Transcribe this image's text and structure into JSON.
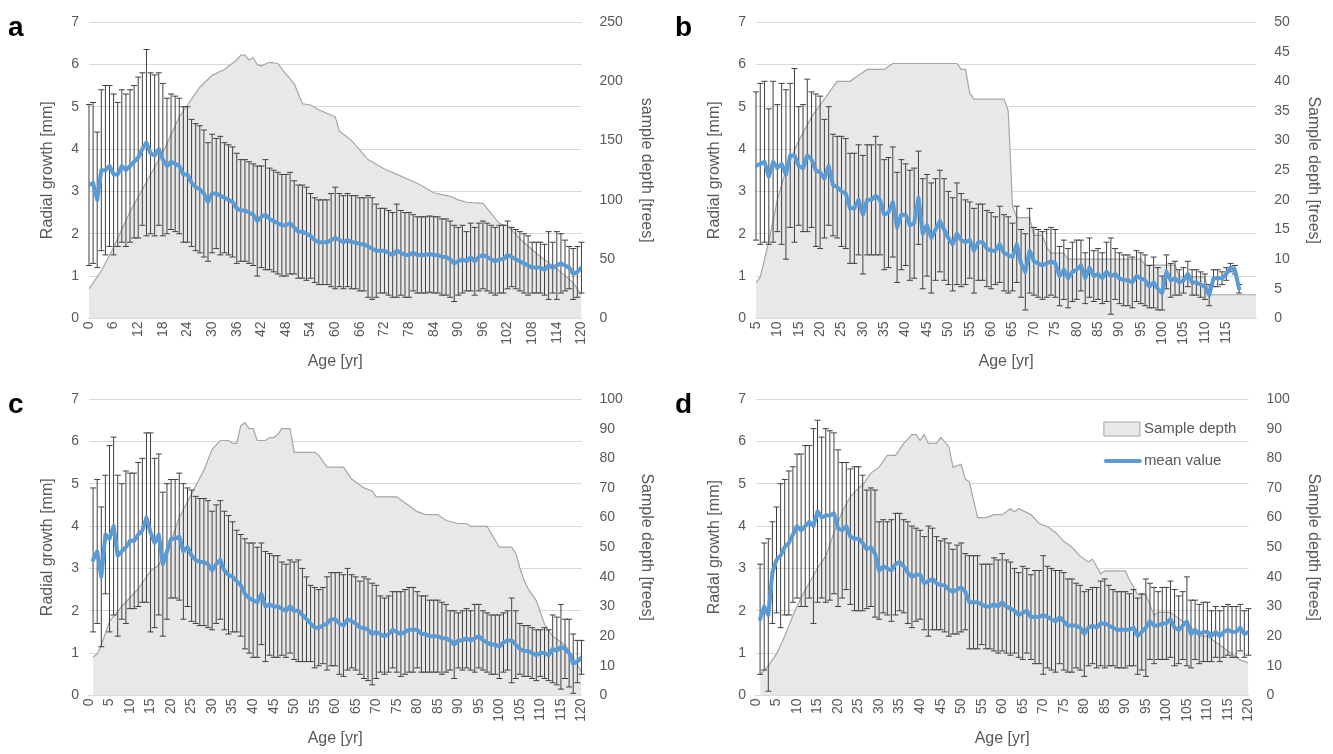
{
  "chart_data": [
    {
      "type": "line",
      "title": "a",
      "xlabel": "Age [yr]",
      "ylabel": "Radial growth [mm]",
      "y2label": "sample depth [trees]",
      "xlim": [
        0,
        120
      ],
      "xticks": [
        0,
        6,
        12,
        18,
        24,
        30,
        36,
        42,
        48,
        54,
        60,
        66,
        72,
        78,
        84,
        90,
        96,
        102,
        108,
        114,
        120
      ],
      "ylim": [
        0,
        7
      ],
      "yticks": [
        0,
        1,
        2,
        3,
        4,
        5,
        6,
        7
      ],
      "y2lim": [
        0,
        250
      ],
      "y2ticks": [
        0,
        50,
        100,
        150,
        200,
        250
      ],
      "grid": "y",
      "marker": "none",
      "x": [
        0,
        1,
        2,
        3,
        4,
        5,
        6,
        7,
        8,
        9,
        10,
        11,
        12,
        13,
        14,
        15,
        16,
        17,
        18,
        19,
        20,
        21,
        22,
        23,
        24,
        25,
        26,
        27,
        28,
        29,
        30,
        31,
        32,
        33,
        34,
        35,
        36,
        37,
        38,
        39,
        40,
        41,
        42,
        43,
        44,
        45,
        46,
        47,
        48,
        49,
        50,
        51,
        52,
        53,
        54,
        55,
        56,
        57,
        58,
        59,
        60,
        61,
        62,
        63,
        64,
        65,
        66,
        67,
        68,
        69,
        70,
        71,
        72,
        73,
        74,
        75,
        76,
        77,
        78,
        79,
        80,
        81,
        82,
        83,
        84,
        85,
        86,
        87,
        88,
        89,
        90,
        91,
        92,
        93,
        94,
        95,
        96,
        97,
        98,
        99,
        100,
        101,
        102,
        103,
        104,
        105,
        106,
        107,
        108,
        109,
        110,
        111,
        112,
        113,
        114,
        115,
        116,
        117,
        118,
        119,
        120
      ],
      "series": [
        {
          "type": "area",
          "axis": "y2",
          "color": "#e8e8e8",
          "x": [
            0,
            3,
            6,
            10,
            14,
            18,
            22,
            24,
            27,
            30,
            33,
            36,
            37,
            38,
            39,
            40,
            41,
            42,
            44,
            46,
            48,
            50,
            52,
            54,
            56,
            60,
            61,
            64,
            68,
            72,
            76,
            80,
            84,
            88,
            90,
            92,
            96,
            100,
            102,
            106,
            110,
            114,
            118,
            120
          ],
          "values": [
            25,
            40,
            60,
            90,
            115,
            140,
            170,
            180,
            195,
            205,
            210,
            218,
            222,
            222,
            218,
            220,
            214,
            213,
            216,
            215,
            206,
            198,
            181,
            180,
            176,
            170,
            158,
            150,
            134,
            126,
            120,
            114,
            106,
            103,
            100,
            98,
            97,
            80,
            78,
            64,
            52,
            42,
            30,
            20
          ]
        },
        {
          "type": "line",
          "color": "#5b9bd5",
          "values": [
            3.15,
            3.2,
            2.8,
            3.5,
            3.5,
            3.6,
            3.4,
            3.4,
            3.6,
            3.5,
            3.6,
            3.7,
            3.8,
            4.0,
            4.15,
            3.9,
            3.85,
            4.0,
            3.75,
            3.6,
            3.7,
            3.65,
            3.6,
            3.4,
            3.4,
            3.2,
            3.1,
            3.05,
            2.95,
            2.75,
            2.95,
            2.95,
            2.9,
            2.85,
            2.8,
            2.75,
            2.6,
            2.55,
            2.55,
            2.5,
            2.45,
            2.3,
            2.4,
            2.45,
            2.35,
            2.3,
            2.25,
            2.2,
            2.2,
            2.25,
            2.15,
            2.05,
            2.05,
            2.0,
            1.95,
            1.85,
            1.8,
            1.8,
            1.8,
            1.85,
            1.9,
            1.85,
            1.8,
            1.85,
            1.8,
            1.8,
            1.75,
            1.75,
            1.7,
            1.65,
            1.6,
            1.6,
            1.6,
            1.55,
            1.5,
            1.6,
            1.55,
            1.5,
            1.5,
            1.55,
            1.5,
            1.5,
            1.5,
            1.52,
            1.5,
            1.5,
            1.45,
            1.45,
            1.4,
            1.3,
            1.35,
            1.4,
            1.35,
            1.45,
            1.35,
            1.45,
            1.5,
            1.45,
            1.4,
            1.35,
            1.4,
            1.4,
            1.5,
            1.45,
            1.4,
            1.35,
            1.3,
            1.25,
            1.2,
            1.2,
            1.2,
            1.15,
            1.25,
            1.2,
            1.25,
            1.3,
            1.25,
            1.2,
            1.05,
            1.1,
            1.2
          ],
          "errors": [
            1.9,
            1.9,
            1.6,
            1.9,
            2.0,
            1.9,
            1.9,
            1.7,
            1.8,
            1.8,
            1.8,
            1.8,
            1.9,
            1.8,
            2.2,
            1.9,
            1.9,
            1.8,
            1.8,
            1.6,
            1.6,
            1.6,
            1.6,
            1.6,
            1.6,
            1.5,
            1.5,
            1.5,
            1.5,
            1.4,
            1.4,
            1.3,
            1.4,
            1.3,
            1.3,
            1.3,
            1.3,
            1.2,
            1.2,
            1.2,
            1.2,
            1.3,
            1.2,
            1.3,
            1.2,
            1.2,
            1.2,
            1.2,
            1.2,
            1.2,
            1.1,
            1.1,
            1.1,
            1.1,
            1.0,
            1.0,
            1.0,
            1.0,
            1.0,
            1.1,
            1.2,
            1.1,
            1.1,
            1.1,
            1.1,
            1.1,
            1.1,
            1.1,
            1.2,
            1.2,
            1.1,
            1.0,
            1.0,
            1.0,
            1.0,
            1.1,
            1.0,
            1.0,
            1.0,
            0.9,
            0.9,
            0.9,
            0.9,
            0.9,
            0.9,
            0.9,
            0.9,
            0.9,
            0.9,
            0.9,
            0.8,
            0.8,
            0.7,
            0.8,
            0.8,
            0.8,
            0.8,
            0.8,
            0.8,
            0.8,
            0.8,
            0.8,
            0.8,
            0.7,
            0.7,
            0.7,
            0.7,
            0.7,
            0.6,
            0.6,
            0.6,
            0.6,
            0.8,
            0.6,
            0.8,
            0.7,
            0.6,
            0.5,
            0.6,
            0.6,
            0.6
          ]
        }
      ]
    },
    {
      "type": "line",
      "title": "b",
      "xlabel": "Age [yr]",
      "ylabel": "Radial growth [mm]",
      "y2label": "Sample depth [trees]",
      "xlim": [
        5,
        122
      ],
      "xticks": [
        5,
        10,
        15,
        20,
        25,
        30,
        35,
        40,
        45,
        50,
        55,
        60,
        65,
        70,
        75,
        80,
        85,
        90,
        95,
        100,
        105,
        110,
        115
      ],
      "ylim": [
        0,
        7
      ],
      "yticks": [
        0,
        1,
        2,
        3,
        4,
        5,
        6,
        7
      ],
      "y2lim": [
        0,
        50
      ],
      "y2ticks": [
        0,
        5,
        10,
        15,
        20,
        25,
        30,
        35,
        40,
        45,
        50
      ],
      "grid": "y",
      "marker": "none",
      "x": [
        5,
        6,
        7,
        8,
        9,
        10,
        11,
        12,
        13,
        14,
        15,
        16,
        17,
        18,
        19,
        20,
        21,
        22,
        23,
        24,
        25,
        26,
        27,
        28,
        29,
        30,
        31,
        32,
        33,
        34,
        35,
        36,
        37,
        38,
        39,
        40,
        41,
        42,
        43,
        44,
        45,
        46,
        47,
        48,
        49,
        50,
        51,
        52,
        53,
        54,
        55,
        56,
        57,
        58,
        59,
        60,
        61,
        62,
        63,
        64,
        65,
        66,
        67,
        68,
        69,
        70,
        71,
        72,
        73,
        74,
        75,
        76,
        77,
        78,
        79,
        80,
        81,
        82,
        83,
        84,
        85,
        86,
        87,
        88,
        89,
        90,
        91,
        92,
        93,
        94,
        95,
        96,
        97,
        98,
        99,
        100,
        101,
        102,
        103,
        104,
        105,
        106,
        107,
        108,
        109,
        110,
        111,
        112,
        113,
        114,
        115,
        116,
        117,
        118
      ],
      "series": [
        {
          "type": "area",
          "axis": "y2",
          "color": "#e8e8e8",
          "x": [
            5,
            6,
            8,
            10,
            12,
            15,
            18,
            20,
            21,
            22,
            23,
            24,
            27,
            29,
            31,
            35,
            37,
            52,
            53,
            54,
            55,
            56,
            63,
            64,
            65,
            66,
            69,
            70,
            72,
            73,
            74,
            77,
            78,
            95,
            96,
            103,
            104,
            110,
            111,
            122
          ],
          "values": [
            6,
            7,
            13,
            20,
            25,
            30,
            34,
            36,
            37,
            38,
            39,
            40,
            40,
            41,
            42,
            42,
            43,
            43,
            42,
            42,
            38,
            37,
            37,
            35,
            19,
            17,
            17,
            14,
            14,
            12,
            11,
            11,
            10,
            10,
            9,
            9,
            7,
            7,
            4,
            4
          ]
        },
        {
          "type": "line",
          "color": "#5b9bd5",
          "values": [
            3.6,
            3.65,
            3.7,
            3.35,
            3.7,
            3.55,
            3.65,
            3.4,
            3.85,
            3.85,
            3.6,
            3.55,
            3.85,
            3.75,
            3.5,
            3.45,
            3.3,
            3.6,
            3.15,
            3.1,
            3.0,
            2.95,
            2.6,
            2.6,
            2.8,
            2.45,
            2.8,
            2.8,
            2.9,
            2.8,
            2.45,
            2.5,
            2.75,
            2.15,
            2.45,
            2.45,
            2.2,
            2.25,
            2.85,
            2.0,
            2.2,
            1.9,
            2.1,
            2.3,
            2.1,
            1.9,
            1.75,
            2.0,
            1.85,
            1.8,
            1.85,
            1.6,
            1.8,
            1.8,
            1.65,
            1.6,
            1.6,
            1.75,
            1.55,
            1.5,
            1.45,
            1.75,
            1.3,
            1.1,
            1.6,
            1.35,
            1.3,
            1.25,
            1.3,
            1.35,
            1.3,
            1.0,
            1.15,
            0.95,
            1.1,
            1.15,
            1.25,
            0.95,
            1.2,
            1.0,
            1.05,
            0.95,
            1.1,
            1.0,
            1.05,
            0.95,
            0.9,
            0.9,
            0.85,
            1.0,
            0.95,
            0.9,
            0.75,
            0.85,
            0.7,
            0.6,
            1.1,
            0.9,
            0.95,
            0.85,
            0.9,
            1.05,
            0.85,
            0.85,
            0.8,
            0.75,
            0.55,
            0.95,
            0.95,
            0.95,
            1.05,
            1.2,
            1.15,
            0.7
          ],
          "errors": [
            1.75,
            1.9,
            1.9,
            1.6,
            1.9,
            1.5,
            1.9,
            2.0,
            1.7,
            2.05,
            1.4,
            1.5,
            1.8,
            1.6,
            1.8,
            1.8,
            1.4,
            1.4,
            1.2,
            1.2,
            1.3,
            1.3,
            1.3,
            1.3,
            1.3,
            1.4,
            1.3,
            1.3,
            1.4,
            1.3,
            1.3,
            1.3,
            1.3,
            1.3,
            1.3,
            1.2,
            1.3,
            1.3,
            1.1,
            1.3,
            1.2,
            1.3,
            1.2,
            1.2,
            1.2,
            1.1,
            1.1,
            1.2,
            1.1,
            1.0,
            0.9,
            1.0,
            0.9,
            0.9,
            0.9,
            0.9,
            0.8,
            0.9,
            0.9,
            0.9,
            0.8,
            0.9,
            0.8,
            0.9,
            1.0,
            0.8,
            0.8,
            0.8,
            0.8,
            0.8,
            0.8,
            0.7,
            0.7,
            0.7,
            0.7,
            0.7,
            0.6,
            0.6,
            0.7,
            0.6,
            0.6,
            0.6,
            0.7,
            0.9,
            0.6,
            0.6,
            0.6,
            0.6,
            0.6,
            0.6,
            0.6,
            0.6,
            0.5,
            0.6,
            0.5,
            0.4,
            0.4,
            0.4,
            0.4,
            0.3,
            0.3,
            0.3,
            0.3,
            0.3,
            0.3,
            0.3,
            0.25,
            0.2,
            0.2,
            0.15,
            0.15,
            0.1,
            0.1,
            0.1
          ]
        }
      ]
    },
    {
      "type": "line",
      "title": "c",
      "xlabel": "Age [yr]",
      "ylabel": "Radial growth [mm]",
      "y2label": "Sample depth [trees]",
      "xlim": [
        0,
        120
      ],
      "xticks": [
        0,
        5,
        10,
        15,
        20,
        25,
        30,
        35,
        40,
        45,
        50,
        55,
        60,
        65,
        70,
        75,
        80,
        85,
        90,
        95,
        100,
        105,
        110,
        115,
        120
      ],
      "ylim": [
        0,
        7
      ],
      "yticks": [
        0,
        1,
        2,
        3,
        4,
        5,
        6,
        7
      ],
      "y2lim": [
        0,
        100
      ],
      "y2ticks": [
        0,
        10,
        20,
        30,
        40,
        50,
        60,
        70,
        80,
        90,
        100
      ],
      "grid": "y",
      "marker": "none",
      "x": [
        1,
        2,
        3,
        4,
        5,
        6,
        7,
        8,
        9,
        10,
        11,
        12,
        13,
        14,
        15,
        16,
        17,
        18,
        19,
        20,
        21,
        22,
        23,
        24,
        25,
        26,
        27,
        28,
        29,
        30,
        31,
        32,
        33,
        34,
        35,
        36,
        37,
        38,
        39,
        40,
        41,
        42,
        43,
        44,
        45,
        46,
        47,
        48,
        49,
        50,
        51,
        52,
        53,
        54,
        55,
        56,
        57,
        58,
        59,
        60,
        61,
        62,
        63,
        64,
        65,
        66,
        67,
        68,
        69,
        70,
        71,
        72,
        73,
        74,
        75,
        76,
        77,
        78,
        79,
        80,
        81,
        82,
        83,
        84,
        85,
        86,
        87,
        88,
        89,
        90,
        91,
        92,
        93,
        94,
        95,
        96,
        97,
        98,
        99,
        100,
        101,
        102,
        103,
        104,
        105,
        106,
        107,
        108,
        109,
        110,
        111,
        112,
        113,
        114,
        115,
        116,
        117,
        118,
        119,
        120
      ],
      "series": [
        {
          "type": "area",
          "axis": "y2",
          "color": "#e8e8e8",
          "x": [
            1,
            2,
            3,
            5,
            8,
            12,
            15,
            17,
            20,
            22,
            25,
            28,
            30,
            32,
            34,
            35,
            36,
            37,
            38,
            39,
            40,
            41,
            43,
            44,
            45,
            46,
            47,
            49,
            50,
            55,
            56,
            58,
            62,
            64,
            67,
            69,
            70,
            75,
            78,
            80,
            82,
            85,
            87,
            90,
            92,
            93,
            97,
            100,
            103,
            104,
            105,
            106,
            107,
            109,
            110,
            111,
            113,
            116,
            118,
            120
          ],
          "values": [
            13,
            14,
            17,
            25,
            30,
            36,
            42,
            44,
            52,
            60,
            68,
            76,
            83,
            86,
            86,
            85,
            85,
            91,
            92,
            90,
            90,
            86,
            86,
            87,
            87,
            88,
            90,
            90,
            82,
            82,
            81,
            77,
            77,
            73,
            70,
            69,
            67,
            67,
            64,
            62,
            61,
            61,
            59,
            58,
            58,
            57,
            57,
            50,
            50,
            48,
            43,
            39,
            36,
            32,
            28,
            24,
            20,
            17,
            13,
            8
          ]
        },
        {
          "type": "line",
          "color": "#5b9bd5",
          "values": [
            3.2,
            3.4,
            2.8,
            3.8,
            3.7,
            4.0,
            3.3,
            3.4,
            3.5,
            3.65,
            3.65,
            3.8,
            3.9,
            4.2,
            3.85,
            3.6,
            3.8,
            3.1,
            3.4,
            3.7,
            3.7,
            3.75,
            3.4,
            3.5,
            3.3,
            3.2,
            3.15,
            3.15,
            3.1,
            2.95,
            3.1,
            3.2,
            2.95,
            2.85,
            2.8,
            2.7,
            2.6,
            2.4,
            2.3,
            2.25,
            2.2,
            2.4,
            2.1,
            2.15,
            2.1,
            2.1,
            2.05,
            2.0,
            2.1,
            2.0,
            2.0,
            1.9,
            1.8,
            1.7,
            1.6,
            1.6,
            1.65,
            1.7,
            1.8,
            1.8,
            1.7,
            1.65,
            1.8,
            1.75,
            1.7,
            1.6,
            1.6,
            1.55,
            1.45,
            1.5,
            1.45,
            1.4,
            1.45,
            1.55,
            1.5,
            1.45,
            1.5,
            1.55,
            1.55,
            1.55,
            1.45,
            1.45,
            1.4,
            1.4,
            1.4,
            1.35,
            1.35,
            1.3,
            1.2,
            1.3,
            1.3,
            1.35,
            1.3,
            1.35,
            1.4,
            1.3,
            1.25,
            1.2,
            1.2,
            1.15,
            1.25,
            1.3,
            1.3,
            1.2,
            1.1,
            1.05,
            1.05,
            1.0,
            0.95,
            1.0,
            1.0,
            0.95,
            1.1,
            1.05,
            1.15,
            1.1,
            1.0,
            0.75,
            0.8,
            0.9
          ],
          "errors": [
            1.7,
            1.7,
            1.65,
            1.4,
            2.2,
            2.1,
            1.9,
            1.6,
            1.8,
            1.6,
            1.6,
            1.7,
            1.7,
            2.0,
            2.35,
            2.0,
            1.9,
            1.7,
            1.6,
            1.4,
            1.4,
            1.5,
            1.6,
            1.4,
            1.55,
            1.5,
            1.5,
            1.5,
            1.5,
            1.4,
            1.4,
            1.4,
            1.4,
            1.4,
            1.3,
            1.2,
            1.2,
            1.3,
            1.3,
            1.35,
            1.3,
            1.2,
            1.3,
            1.2,
            1.2,
            1.2,
            1.1,
            1.1,
            1.1,
            1.15,
            1.2,
            1.1,
            1.0,
            0.9,
            0.95,
            0.9,
            0.9,
            1.1,
            1.1,
            1.1,
            1.2,
            1.2,
            1.2,
            1.1,
            1.1,
            1.1,
            1.2,
            1.2,
            1.2,
            1.1,
            0.9,
            0.9,
            0.9,
            0.9,
            0.95,
            1.0,
            1.0,
            1.0,
            1.0,
            0.9,
            0.9,
            0.9,
            0.85,
            0.85,
            0.85,
            0.85,
            0.8,
            0.7,
            0.8,
            0.65,
            0.7,
            0.7,
            0.7,
            0.8,
            0.75,
            0.7,
            0.7,
            0.7,
            0.7,
            0.75,
            0.7,
            0.7,
            1.0,
            0.8,
            0.6,
            0.6,
            0.6,
            0.6,
            0.6,
            0.55,
            0.6,
            0.6,
            0.8,
            0.8,
            1.0,
            0.7,
            0.8,
            0.7,
            0.5,
            0.4
          ]
        }
      ]
    },
    {
      "type": "line",
      "title": "d",
      "xlabel": "Age [yr]",
      "ylabel": "Radal growth [mm]",
      "y2label": "Sample depth [trees]",
      "xlim": [
        0,
        120
      ],
      "xticks": [
        0,
        5,
        10,
        15,
        20,
        25,
        30,
        35,
        40,
        45,
        50,
        55,
        60,
        65,
        70,
        75,
        80,
        85,
        90,
        95,
        100,
        105,
        110,
        115,
        120
      ],
      "ylim": [
        0,
        7
      ],
      "yticks": [
        0,
        1,
        2,
        3,
        4,
        5,
        6,
        7
      ],
      "y2lim": [
        0,
        100
      ],
      "y2ticks": [
        0,
        10,
        20,
        30,
        40,
        50,
        60,
        70,
        80,
        90,
        100
      ],
      "grid": "y",
      "marker": "none",
      "legend": "top right",
      "x": [
        1,
        2,
        3,
        4,
        5,
        6,
        7,
        8,
        9,
        10,
        11,
        12,
        13,
        14,
        15,
        16,
        17,
        18,
        19,
        20,
        21,
        22,
        23,
        24,
        25,
        26,
        27,
        28,
        29,
        30,
        31,
        32,
        33,
        34,
        35,
        36,
        37,
        38,
        39,
        40,
        41,
        42,
        43,
        44,
        45,
        46,
        47,
        48,
        49,
        50,
        51,
        52,
        53,
        54,
        55,
        56,
        57,
        58,
        59,
        60,
        61,
        62,
        63,
        64,
        65,
        66,
        67,
        68,
        69,
        70,
        71,
        72,
        73,
        74,
        75,
        76,
        77,
        78,
        79,
        80,
        81,
        82,
        83,
        84,
        85,
        86,
        87,
        88,
        89,
        90,
        91,
        92,
        93,
        94,
        95,
        96,
        97,
        98,
        99,
        100,
        101,
        102,
        103,
        104,
        105,
        106,
        107,
        108,
        109,
        110,
        111,
        112,
        113,
        114,
        115,
        116,
        117,
        118,
        119,
        120
      ],
      "series": [
        {
          "type": "area",
          "name": "Sample depth",
          "axis": "y2",
          "color": "#e8e8e8",
          "x": [
            1,
            3,
            5,
            7,
            9,
            11,
            13,
            15,
            17,
            19,
            21,
            23,
            25,
            26,
            28,
            30,
            32,
            34,
            36,
            38,
            39,
            40,
            41,
            42,
            44,
            45,
            47,
            48,
            50,
            51,
            52,
            54,
            56,
            58,
            60,
            62,
            63,
            64,
            67,
            69,
            71,
            73,
            75,
            77,
            79,
            81,
            82,
            84,
            85,
            86,
            90,
            91,
            93,
            95,
            97,
            98,
            101,
            103,
            106,
            108,
            110,
            112,
            114,
            116,
            118,
            120
          ],
          "values": [
            7,
            10,
            14,
            20,
            27,
            33,
            38,
            43,
            47,
            55,
            62,
            67,
            70,
            71,
            75,
            77,
            81,
            81,
            85,
            88,
            88,
            86,
            88,
            85,
            85,
            87,
            84,
            77,
            78,
            73,
            72,
            60,
            60,
            61,
            61,
            63,
            62,
            63,
            61,
            58,
            57,
            55,
            52,
            50,
            47,
            45,
            46,
            41,
            42,
            42,
            42,
            39,
            34,
            34,
            27,
            28,
            28,
            26,
            23,
            20,
            20,
            18,
            16,
            14,
            12,
            11
          ]
        },
        {
          "type": "line",
          "name": "mean value",
          "color": "#5b9bd5",
          "values": [
            1.8,
            2.1,
            1.9,
            2.9,
            3.2,
            3.3,
            3.5,
            3.6,
            3.8,
            4.0,
            3.9,
            4.0,
            4.1,
            4.0,
            4.35,
            4.2,
            4.25,
            4.25,
            4.3,
            3.95,
            3.9,
            4.0,
            3.75,
            3.7,
            3.7,
            3.6,
            3.45,
            3.5,
            3.35,
            2.95,
            3.05,
            3.0,
            2.95,
            3.1,
            3.15,
            3.05,
            2.9,
            2.8,
            2.85,
            2.85,
            2.65,
            2.7,
            2.75,
            2.65,
            2.6,
            2.6,
            2.5,
            2.45,
            2.5,
            2.55,
            2.45,
            2.2,
            2.2,
            2.2,
            2.15,
            2.1,
            2.1,
            2.15,
            2.1,
            2.2,
            2.1,
            2.05,
            2.0,
            1.9,
            1.95,
            2.0,
            1.85,
            1.85,
            1.85,
            1.9,
            1.85,
            1.8,
            1.75,
            1.85,
            1.75,
            1.65,
            1.65,
            1.65,
            1.6,
            1.45,
            1.6,
            1.65,
            1.6,
            1.7,
            1.7,
            1.65,
            1.6,
            1.55,
            1.55,
            1.55,
            1.55,
            1.6,
            1.4,
            1.5,
            1.6,
            1.75,
            1.65,
            1.65,
            1.7,
            1.7,
            1.8,
            1.6,
            1.55,
            1.65,
            1.75,
            1.45,
            1.55,
            1.45,
            1.5,
            1.5,
            1.4,
            1.5,
            1.4,
            1.5,
            1.55,
            1.5,
            1.5,
            1.6,
            1.45,
            1.5
          ],
          "errors": [
            1.3,
            1.5,
            1.8,
            1.2,
            1.25,
            1.7,
            1.6,
            1.7,
            1.6,
            1.7,
            1.8,
            1.9,
            1.8,
            2.3,
            2.15,
            1.9,
            2.05,
            2.0,
            1.9,
            1.85,
            1.6,
            1.5,
            1.6,
            1.7,
            1.7,
            1.6,
            1.4,
            1.4,
            1.5,
            1.15,
            1.1,
            1.1,
            1.2,
            1.2,
            1.15,
            1.1,
            1.2,
            1.2,
            1.1,
            1.05,
            1.1,
            1.3,
            1.2,
            1.1,
            1.05,
            1.1,
            1.1,
            1.0,
            1.05,
            1.05,
            0.9,
            1.1,
            1.1,
            1.1,
            0.95,
            1.0,
            1.0,
            1.1,
            1.1,
            1.15,
            1.1,
            1.1,
            1.0,
            1.0,
            1.1,
            1.0,
            1.0,
            1.1,
            1.1,
            1.4,
            1.2,
            1.2,
            1.2,
            1.1,
            1.15,
            1.1,
            1.1,
            1.0,
            1.0,
            1.0,
            0.9,
            0.9,
            0.95,
            1.0,
            1.05,
            0.95,
            0.9,
            0.9,
            0.9,
            0.9,
            0.85,
            0.9,
            0.9,
            0.9,
            1.15,
            0.9,
            0.9,
            0.8,
            0.85,
            0.85,
            0.9,
            0.9,
            0.8,
            0.8,
            1.05,
            0.8,
            0.7,
            0.7,
            0.7,
            0.7,
            0.6,
            0.6,
            0.6,
            0.6,
            0.6,
            0.6,
            0.6,
            0.55,
            0.55,
            0.55
          ]
        }
      ]
    }
  ]
}
